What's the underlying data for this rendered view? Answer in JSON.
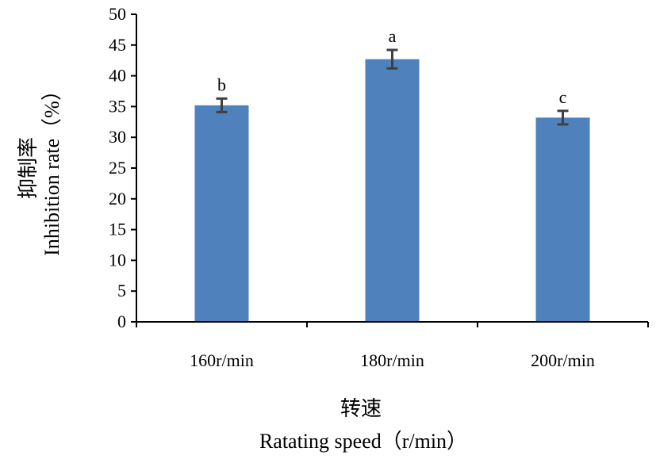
{
  "chart_data": {
    "type": "bar",
    "categories": [
      "160r/min",
      "180r/min",
      "200r/min"
    ],
    "values": [
      35.2,
      42.7,
      33.2
    ],
    "error": [
      1.1,
      1.5,
      1.1
    ],
    "significance": [
      "b",
      "a",
      "c"
    ],
    "xlabel_cn": "转速",
    "xlabel": "Ratating speed（r/min）",
    "ylabel_cn": "抑制率",
    "ylabel": "Inhibition rate（%）",
    "ylim": [
      0,
      50
    ],
    "yticks": [
      0,
      5,
      10,
      15,
      20,
      25,
      30,
      35,
      40,
      45,
      50
    ],
    "grid": false,
    "legend": "none",
    "bar_color": "#4f81bd",
    "error_color": "#404040"
  }
}
